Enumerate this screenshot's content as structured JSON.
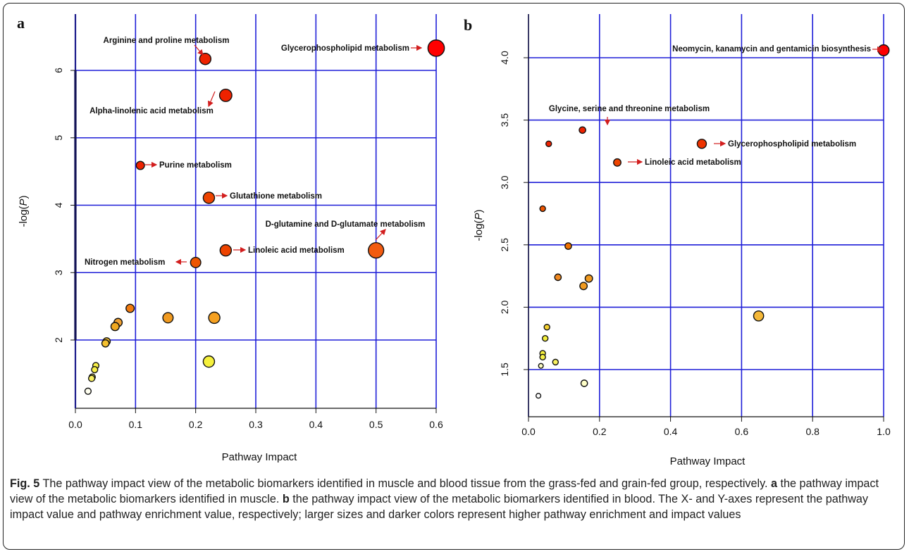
{
  "chart_data": [
    {
      "type": "scatter",
      "panel": "a",
      "xlabel": "Pathway Impact",
      "ylabel": "-log(P)",
      "xlim": [
        0,
        0.6
      ],
      "ylim": [
        1,
        6.5
      ],
      "xticks": [
        "0.0",
        "0.1",
        "0.2",
        "0.3",
        "0.4",
        "0.5",
        "0.6"
      ],
      "yticks": [
        "2",
        "3",
        "4",
        "5",
        "6"
      ],
      "grid": true,
      "points": [
        {
          "x": 0.6,
          "y": 6.33,
          "size": 14,
          "color": "#ff0000",
          "label": "Glycerophospholipid metabolism"
        },
        {
          "x": 0.216,
          "y": 6.17,
          "size": 9,
          "color": "#ee2200",
          "label": "Arginine and proline metabolism"
        },
        {
          "x": 0.25,
          "y": 5.63,
          "size": 10,
          "color": "#ee2200",
          "label": "Alpha-linolenic acid metabolism"
        },
        {
          "x": 0.108,
          "y": 4.59,
          "size": 6,
          "color": "#ee2200",
          "label": "Purine metabolism"
        },
        {
          "x": 0.222,
          "y": 4.11,
          "size": 9,
          "color": "#ee4400",
          "label": "Glutathione metabolism"
        },
        {
          "x": 0.5,
          "y": 3.33,
          "size": 13,
          "color": "#f25b11",
          "label": "D-glutamine and D-glutamate metabolism"
        },
        {
          "x": 0.25,
          "y": 3.33,
          "size": 9,
          "color": "#ee4400",
          "label": "Linoleic acid metabolism"
        },
        {
          "x": 0.2,
          "y": 3.15,
          "size": 8,
          "color": "#ee5500",
          "label": "Nitrogen metabolism"
        },
        {
          "x": 0.091,
          "y": 2.47,
          "size": 6,
          "color": "#f07a10"
        },
        {
          "x": 0.154,
          "y": 2.33,
          "size": 8,
          "color": "#f09a20"
        },
        {
          "x": 0.231,
          "y": 2.33,
          "size": 9,
          "color": "#f5a020"
        },
        {
          "x": 0.071,
          "y": 2.26,
          "size": 6,
          "color": "#f0a030"
        },
        {
          "x": 0.066,
          "y": 2.2,
          "size": 6,
          "color": "#f0a820"
        },
        {
          "x": 0.052,
          "y": 1.98,
          "size": 5,
          "color": "#f4c030"
        },
        {
          "x": 0.05,
          "y": 1.95,
          "size": 5,
          "color": "#f4c030"
        },
        {
          "x": 0.222,
          "y": 1.68,
          "size": 9,
          "color": "#f5f03c"
        },
        {
          "x": 0.034,
          "y": 1.62,
          "size": 4,
          "color": "#f8f048"
        },
        {
          "x": 0.032,
          "y": 1.56,
          "size": 4,
          "color": "#f8f048"
        },
        {
          "x": 0.028,
          "y": 1.45,
          "size": 4,
          "color": "#f8f060"
        },
        {
          "x": 0.027,
          "y": 1.43,
          "size": 4,
          "color": "#f8f060"
        },
        {
          "x": 0.021,
          "y": 1.24,
          "size": 4,
          "color": "#fffff0"
        }
      ]
    },
    {
      "type": "scatter",
      "panel": "b",
      "xlabel": "Pathway Impact",
      "ylabel": "-log(P)",
      "xlim": [
        0,
        1.0
      ],
      "ylim": [
        1.3,
        4.1
      ],
      "xticks": [
        "0.0",
        "0.2",
        "0.4",
        "0.6",
        "0.8",
        "1.0"
      ],
      "yticks": [
        "1.5",
        "2.0",
        "2.5",
        "3.0",
        "3.5",
        "4.0"
      ],
      "grid": true,
      "points": [
        {
          "x": 1.0,
          "y": 4.06,
          "size": 10,
          "color": "#ff0000",
          "label": "Neomycin, kanamycin and gentamicin biosynthesis"
        },
        {
          "x": 0.152,
          "y": 3.42,
          "size": 5,
          "color": "#ee2200",
          "label": "Glycine, serine and threonine metabolism"
        },
        {
          "x": 0.057,
          "y": 3.31,
          "size": 4,
          "color": "#ee2200"
        },
        {
          "x": 0.488,
          "y": 3.31,
          "size": 8,
          "color": "#ee3300",
          "label": "Glycerophospholipid metabolism"
        },
        {
          "x": 0.25,
          "y": 3.16,
          "size": 6,
          "color": "#ee4400",
          "label": "Linoleic acid metabolism"
        },
        {
          "x": 0.04,
          "y": 2.79,
          "size": 4,
          "color": "#ee5500"
        },
        {
          "x": 0.112,
          "y": 2.49,
          "size": 5,
          "color": "#ee7000"
        },
        {
          "x": 0.083,
          "y": 2.24,
          "size": 5,
          "color": "#f08820"
        },
        {
          "x": 0.17,
          "y": 2.23,
          "size": 6,
          "color": "#f09a20"
        },
        {
          "x": 0.155,
          "y": 2.17,
          "size": 6,
          "color": "#f09a20"
        },
        {
          "x": 0.648,
          "y": 1.93,
          "size": 9,
          "color": "#f5b838"
        },
        {
          "x": 0.052,
          "y": 1.84,
          "size": 4,
          "color": "#f4d030"
        },
        {
          "x": 0.047,
          "y": 1.75,
          "size": 4,
          "color": "#f5f03c"
        },
        {
          "x": 0.04,
          "y": 1.63,
          "size": 4,
          "color": "#f5f03c"
        },
        {
          "x": 0.04,
          "y": 1.6,
          "size": 4,
          "color": "#f5f048"
        },
        {
          "x": 0.076,
          "y": 1.56,
          "size": 4,
          "color": "#f8f060"
        },
        {
          "x": 0.035,
          "y": 1.53,
          "size": 3,
          "color": "#fafac0"
        },
        {
          "x": 0.157,
          "y": 1.39,
          "size": 5,
          "color": "#ffffc8"
        },
        {
          "x": 0.028,
          "y": 1.29,
          "size": 3,
          "color": "#ffffff"
        }
      ]
    }
  ],
  "panel_letters": {
    "a": "a",
    "b": "b"
  },
  "caption": {
    "fig_label": "Fig. 5",
    "text1": " The pathway impact view of the metabolic biomarkers identified in muscle and blood tissue from the grass-fed and grain-fed group, respectively. ",
    "a": "a",
    "text2": " the pathway impact view of the metabolic biomarkers identified in muscle. ",
    "b": "b",
    "text3": " the pathway impact view of the metabolic biomarkers identified in blood. The X- and Y-axes represent the pathway impact value and pathway enrichment value, respectively; larger sizes and darker colors represent higher pathway enrichment and impact values"
  },
  "colors": {
    "grid": "#1f1fd8",
    "arrow": "#d21e1e",
    "axis": "#111111"
  }
}
